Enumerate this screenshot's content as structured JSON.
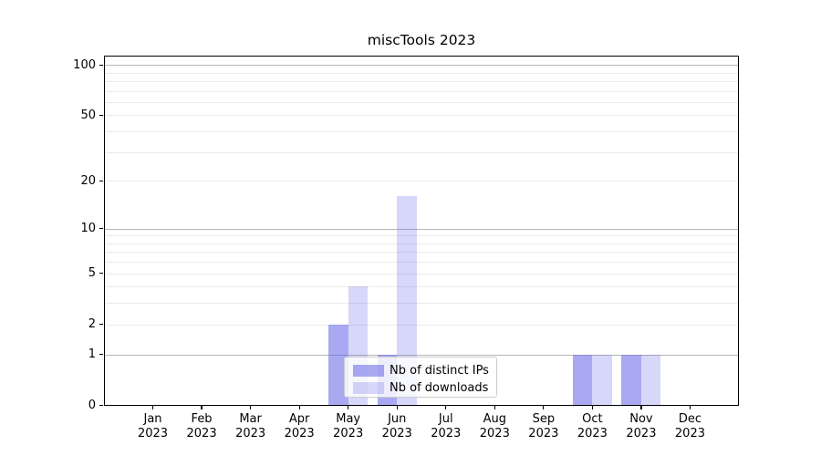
{
  "chart_data": {
    "type": "bar",
    "title": "miscTools 2023",
    "categories": [
      "Jan",
      "Feb",
      "Mar",
      "Apr",
      "May",
      "Jun",
      "Jul",
      "Aug",
      "Sep",
      "Oct",
      "Nov",
      "Dec"
    ],
    "category_year": "2023",
    "series": [
      {
        "name": "Nb of distinct IPs",
        "color": "rgba(102,102,232,0.56)",
        "values": [
          0,
          0,
          0,
          0,
          2,
          1,
          0,
          0,
          0,
          1,
          1,
          0
        ]
      },
      {
        "name": "Nb of downloads",
        "color": "rgba(102,102,232,0.26)",
        "values": [
          0,
          0,
          0,
          0,
          4,
          16,
          0,
          0,
          0,
          1,
          1,
          0
        ]
      }
    ],
    "y_axis": {
      "scale": "log1p",
      "labeled_ticks": [
        0,
        1,
        2,
        5,
        10,
        20,
        50,
        100
      ],
      "major_gridlines": [
        1,
        10,
        100
      ],
      "minor_gridlines": [
        2,
        3,
        4,
        5,
        6,
        7,
        8,
        9,
        20,
        30,
        40,
        50,
        60,
        70,
        80,
        90
      ],
      "ylim": [
        0,
        114
      ]
    },
    "xlabel": "",
    "ylabel": "",
    "grid": true,
    "legend_position": "lower center"
  },
  "colors": {
    "background": "#ffffff",
    "axis": "#000000",
    "major_grid": "#b6b6b6",
    "minor_grid": "#eaeaea",
    "legend_border": "#cccccc",
    "text": "#000000"
  }
}
